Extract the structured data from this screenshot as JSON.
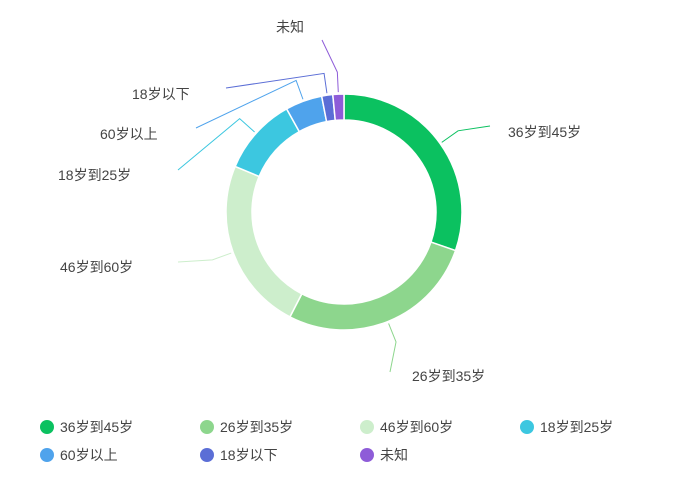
{
  "chart_data": {
    "type": "pie",
    "categories": [
      "36岁到45岁",
      "26岁到35岁",
      "46岁到60岁",
      "18岁到25岁",
      "60岁以上",
      "18岁以下",
      "未知"
    ],
    "values": [
      30.0,
      27.0,
      23.5,
      10.5,
      5.0,
      1.5,
      1.5
    ],
    "colors": [
      "#0bc160",
      "#8dd68d",
      "#cdeecc",
      "#3cc7e0",
      "#4fa3ec",
      "#5b6ed6",
      "#8e5cd8"
    ],
    "legend_position": "bottom",
    "donut": true
  }
}
